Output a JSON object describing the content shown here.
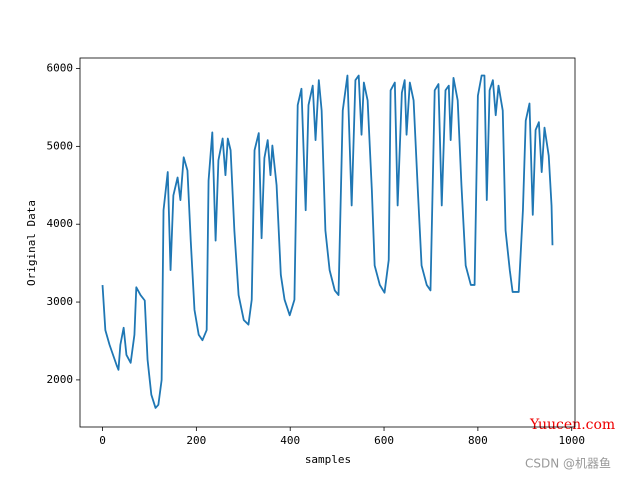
{
  "chart_data": {
    "type": "line",
    "xlabel": "samples",
    "ylabel": "Original Data",
    "color": "#1f77b4",
    "x": [
      0,
      6,
      15,
      30,
      34,
      38,
      45,
      51,
      60,
      68,
      72,
      81,
      90,
      96,
      104,
      113,
      119,
      126,
      130,
      139,
      145,
      151,
      160,
      166,
      173,
      181,
      188,
      196,
      205,
      213,
      222,
      226,
      234,
      241,
      247,
      256,
      262,
      267,
      273,
      281,
      290,
      301,
      311,
      318,
      324,
      333,
      339,
      345,
      352,
      358,
      362,
      371,
      380,
      388,
      399,
      409,
      416,
      424,
      433,
      439,
      448,
      454,
      461,
      467,
      475,
      484,
      495,
      503,
      512,
      522,
      531,
      539,
      546,
      552,
      557,
      565,
      574,
      580,
      591,
      601,
      610,
      614,
      623,
      629,
      638,
      644,
      648,
      655,
      663,
      672,
      680,
      691,
      699,
      708,
      716,
      723,
      731,
      738,
      742,
      748,
      757,
      765,
      774,
      785,
      793,
      800,
      808,
      814,
      819,
      825,
      832,
      838,
      844,
      853,
      859,
      868,
      874,
      881,
      887,
      896,
      902,
      910,
      917,
      923,
      930,
      936,
      942,
      951,
      957,
      959
    ],
    "values": [
      3218,
      2640,
      2450,
      2190,
      2130,
      2450,
      2670,
      2320,
      2220,
      2580,
      3190,
      3090,
      3020,
      2260,
      1810,
      1640,
      1680,
      2000,
      4180,
      4670,
      3410,
      4370,
      4600,
      4310,
      4860,
      4690,
      3790,
      2900,
      2580,
      2510,
      2640,
      4560,
      5180,
      3790,
      4820,
      5100,
      4630,
      5100,
      4950,
      3920,
      3090,
      2770,
      2710,
      3030,
      4950,
      5170,
      3820,
      4850,
      5080,
      4630,
      5010,
      4500,
      3350,
      3030,
      2830,
      3030,
      5530,
      5740,
      4180,
      5530,
      5780,
      5080,
      5850,
      5460,
      3920,
      3410,
      3150,
      3090,
      5460,
      5910,
      4240,
      5850,
      5910,
      5150,
      5820,
      5590,
      4440,
      3470,
      3220,
      3120,
      3540,
      5720,
      5820,
      4240,
      5690,
      5850,
      5150,
      5820,
      5590,
      4440,
      3470,
      3220,
      3150,
      5720,
      5800,
      4240,
      5720,
      5780,
      5080,
      5880,
      5590,
      4500,
      3470,
      3220,
      3220,
      5650,
      5910,
      5910,
      4310,
      5720,
      5850,
      5400,
      5780,
      5460,
      3920,
      3410,
      3130,
      3130,
      3130,
      4180,
      5330,
      5550,
      4120,
      5210,
      5310,
      4670,
      5240,
      4880,
      4240,
      3730
    ],
    "xlim": [
      -48,
      1007
    ],
    "ylim": [
      1395,
      6135
    ],
    "xticks": [
      0,
      200,
      400,
      600,
      800,
      1000
    ],
    "yticks": [
      2000,
      3000,
      4000,
      5000,
      6000
    ],
    "watermarks": [
      "Yuucen.com",
      "CSDN @机器鱼"
    ]
  }
}
